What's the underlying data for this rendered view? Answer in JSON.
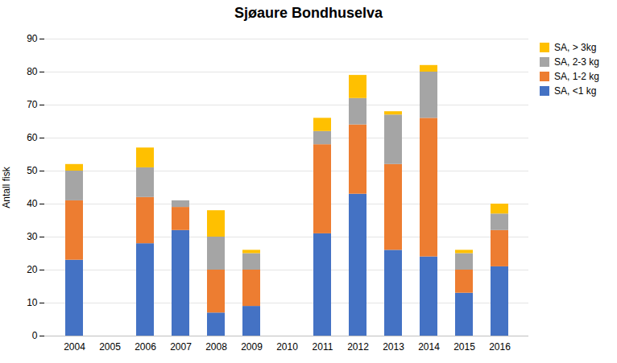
{
  "chart_data": {
    "type": "bar",
    "stacked": true,
    "title": "Sjøaure Bondhuselva",
    "ylabel": "Antall fisk",
    "categories": [
      "2004",
      "2005",
      "2006",
      "2007",
      "2008",
      "2009",
      "2010",
      "2011",
      "2012",
      "2013",
      "2014",
      "2015",
      "2016"
    ],
    "series": [
      {
        "name": "SA, <1 kg",
        "color": "#4472C4",
        "values": [
          23,
          0,
          28,
          32,
          7,
          9,
          0,
          31,
          43,
          26,
          24,
          13,
          21
        ]
      },
      {
        "name": "SA, 1-2 kg",
        "color": "#ED7D31",
        "values": [
          18,
          0,
          14,
          7,
          13,
          11,
          0,
          27,
          21,
          26,
          42,
          7,
          11
        ]
      },
      {
        "name": "SA, 2-3 kg",
        "color": "#A5A5A5",
        "values": [
          9,
          0,
          9,
          2,
          10,
          5,
          0,
          4,
          8,
          15,
          14,
          5,
          5
        ]
      },
      {
        "name": "SA, > 3kg",
        "color": "#FFC000",
        "values": [
          2,
          0,
          6,
          0,
          8,
          1,
          0,
          4,
          7,
          1,
          2,
          1,
          3
        ]
      }
    ],
    "ylim": [
      0,
      90
    ],
    "yticks": [
      0,
      10,
      20,
      30,
      40,
      50,
      60,
      70,
      80,
      90
    ],
    "grid": true,
    "legend": "upper right"
  }
}
